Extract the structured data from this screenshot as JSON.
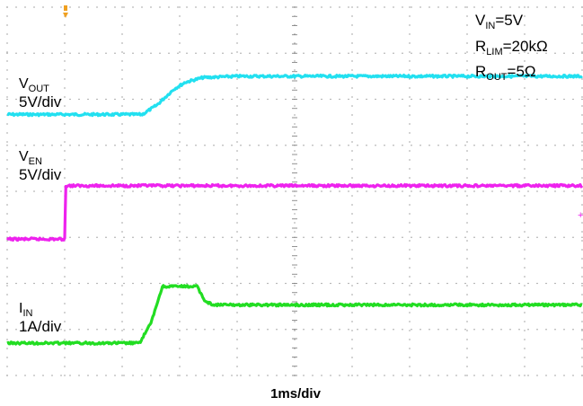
{
  "chart_data": {
    "type": "line",
    "x_axis": {
      "unit_label": "1ms/div",
      "divisions": 10,
      "range_ms": [
        0,
        10
      ]
    },
    "y_axis": {
      "divisions": 8
    },
    "grid": "dotted",
    "conditions": [
      {
        "id": "vin",
        "main": "V",
        "sub": "IN",
        "rest": "=5V"
      },
      {
        "id": "rlim",
        "main": "R",
        "sub": "LIM",
        "rest": "=20kΩ"
      },
      {
        "id": "rout",
        "main": "R",
        "sub": "OUT",
        "rest": "=5Ω"
      }
    ],
    "series": [
      {
        "name_main": "V",
        "name_sub": "OUT",
        "scale": "5V/div",
        "color": "#22e0f0",
        "points_ms_div": [
          [
            0,
            0.05
          ],
          [
            2.35,
            0.05
          ],
          [
            2.6,
            0.25
          ],
          [
            2.9,
            0.6
          ],
          [
            3.1,
            0.75
          ],
          [
            3.4,
            0.85
          ],
          [
            4.0,
            0.88
          ],
          [
            10,
            0.88
          ]
        ]
      },
      {
        "name_main": "V",
        "name_sub": "EN",
        "scale": "5V/div",
        "color": "#ee22ee",
        "points_ms_div": [
          [
            0,
            -0.18
          ],
          [
            1.0,
            -0.18
          ],
          [
            1.02,
            0.98
          ],
          [
            10,
            0.98
          ]
        ]
      },
      {
        "name_main": "I",
        "name_sub": "IN",
        "scale": "1A/div",
        "color": "#22dd22",
        "points_ms_div": [
          [
            0,
            0.02
          ],
          [
            2.3,
            0.02
          ],
          [
            2.5,
            0.45
          ],
          [
            2.7,
            1.25
          ],
          [
            3.3,
            1.25
          ],
          [
            3.45,
            0.92
          ],
          [
            3.6,
            0.85
          ],
          [
            10,
            0.85
          ]
        ]
      }
    ]
  }
}
